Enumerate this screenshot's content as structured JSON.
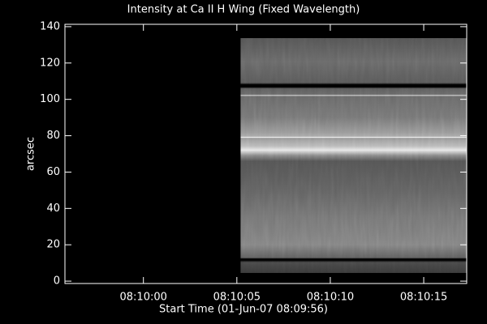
{
  "chart_data": {
    "type": "image",
    "title": "Intensity at Ca II H Wing (Fixed Wavelength)",
    "x_label": "Start Time (01-Jun-07 08:09:56)",
    "y_label": "arcsec",
    "xlim": [
      29395.8,
      29417.3
    ],
    "xticks": [
      {
        "value": 29400,
        "label": "08:10:00"
      },
      {
        "value": 29405,
        "label": "08:10:05"
      },
      {
        "value": 29410,
        "label": "08:10:10"
      },
      {
        "value": 29415,
        "label": "08:10:15"
      }
    ],
    "ylim": [
      -1.3,
      141.3
    ],
    "yticks": [
      0,
      20,
      40,
      60,
      80,
      100,
      120,
      140
    ],
    "image_extent": {
      "x": [
        29405.2,
        29417.3
      ],
      "y": [
        4.5,
        133.7
      ]
    }
  }
}
